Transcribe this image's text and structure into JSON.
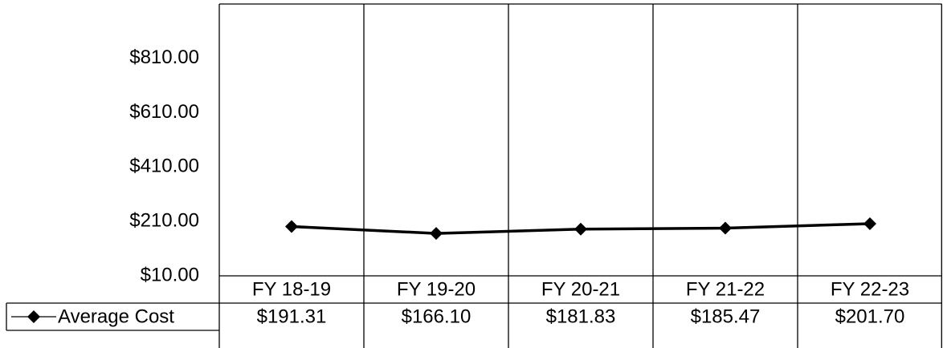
{
  "chart_data": {
    "type": "line",
    "categories": [
      "FY 18-19",
      "FY 19-20",
      "FY 20-21",
      "FY 21-22",
      "FY 22-23"
    ],
    "series": [
      {
        "name": "Average Cost",
        "color": "#000000",
        "values": [
          191.31,
          166.1,
          181.83,
          185.47,
          201.7
        ],
        "value_labels": [
          "$191.31",
          "$166.10",
          "$181.83",
          "$185.47",
          "$201.70"
        ]
      }
    ],
    "ylim": [
      10,
      1010
    ],
    "yticks": [
      {
        "value": 10,
        "label": "$10.00"
      },
      {
        "value": 210,
        "label": "$210.00"
      },
      {
        "value": 410,
        "label": "$410.00"
      },
      {
        "value": 610,
        "label": "$610.00"
      },
      {
        "value": 810,
        "label": "$810.00"
      }
    ],
    "grid": true,
    "data_table": true
  }
}
